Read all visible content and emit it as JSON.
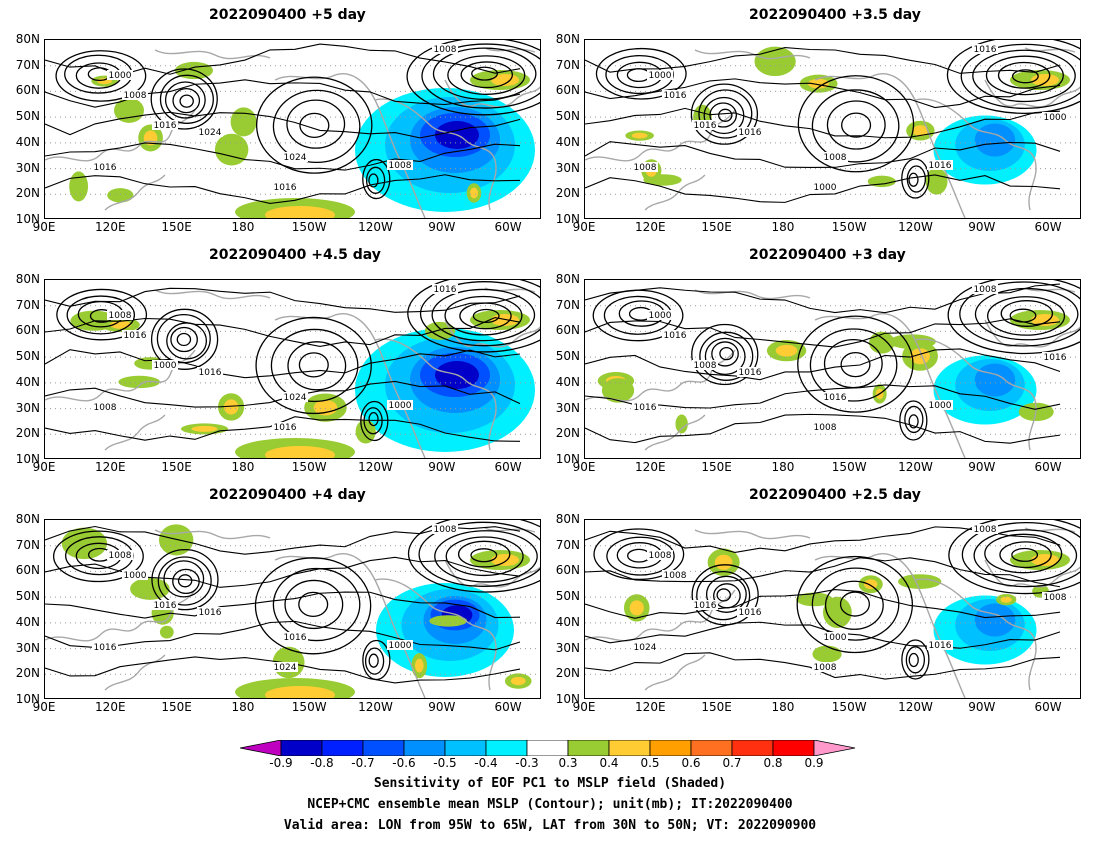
{
  "panels": [
    {
      "title": "2022090400 +5 day",
      "contour_labels": [
        "1000",
        "1008",
        "1016",
        "1024",
        "1024",
        "1016",
        "1016",
        "1008",
        "1008"
      ]
    },
    {
      "title": "2022090400 +3.5 day",
      "contour_labels": [
        "1000",
        "1016",
        "1016",
        "1016",
        "1008",
        "1000",
        "1008",
        "1016",
        "1016",
        "1000"
      ]
    },
    {
      "title": "2022090400 +4.5 day",
      "contour_labels": [
        "1008",
        "1016",
        "1000",
        "1016",
        "1024",
        "1016",
        "1008",
        "1000",
        "1016"
      ]
    },
    {
      "title": "2022090400 +3 day",
      "contour_labels": [
        "1000",
        "1016",
        "1008",
        "1016",
        "1016",
        "1008",
        "1016",
        "1000",
        "1008",
        "1016"
      ]
    },
    {
      "title": "2022090400 +4 day",
      "contour_labels": [
        "1008",
        "1000",
        "1016",
        "1016",
        "1016",
        "1024",
        "1016",
        "1000",
        "1008"
      ]
    },
    {
      "title": "2022090400 +2.5 day",
      "contour_labels": [
        "1008",
        "1008",
        "1016",
        "1016",
        "1000",
        "1008",
        "1024",
        "1016",
        "1008",
        "1008"
      ]
    }
  ],
  "map": {
    "lat_ticks": [
      "80N",
      "70N",
      "60N",
      "50N",
      "40N",
      "30N",
      "20N",
      "10N"
    ],
    "lon_ticks": [
      "90E",
      "120E",
      "150E",
      "180",
      "150W",
      "120W",
      "90W",
      "60W"
    ],
    "lon_range": [
      90,
      305
    ],
    "lat_range": [
      10,
      80
    ]
  },
  "colorbar": {
    "labels": [
      "-0.9",
      "-0.8",
      "-0.7",
      "-0.6",
      "-0.5",
      "-0.4",
      "-0.3",
      "0.3",
      "0.4",
      "0.5",
      "0.6",
      "0.7",
      "0.8",
      "0.9"
    ],
    "colors": [
      "#c000c0",
      "#0000c8",
      "#0020ff",
      "#0050ff",
      "#0090ff",
      "#00c0ff",
      "#00f0ff",
      "#ffffff",
      "#99cc33",
      "#ffcc33",
      "#ffa000",
      "#ff7020",
      "#ff3010",
      "#ff0000",
      "#ff99cc"
    ]
  },
  "captions": {
    "line1": "Sensitivity of EOF PC1 to MSLP field (Shaded)",
    "line2": "NCEP+CMC ensemble mean MSLP (Contour); unit(mb); IT:2022090400",
    "line3": "Valid area: LON from 95W to 65W, LAT from 30N to 50N; VT: 2022090900"
  }
}
